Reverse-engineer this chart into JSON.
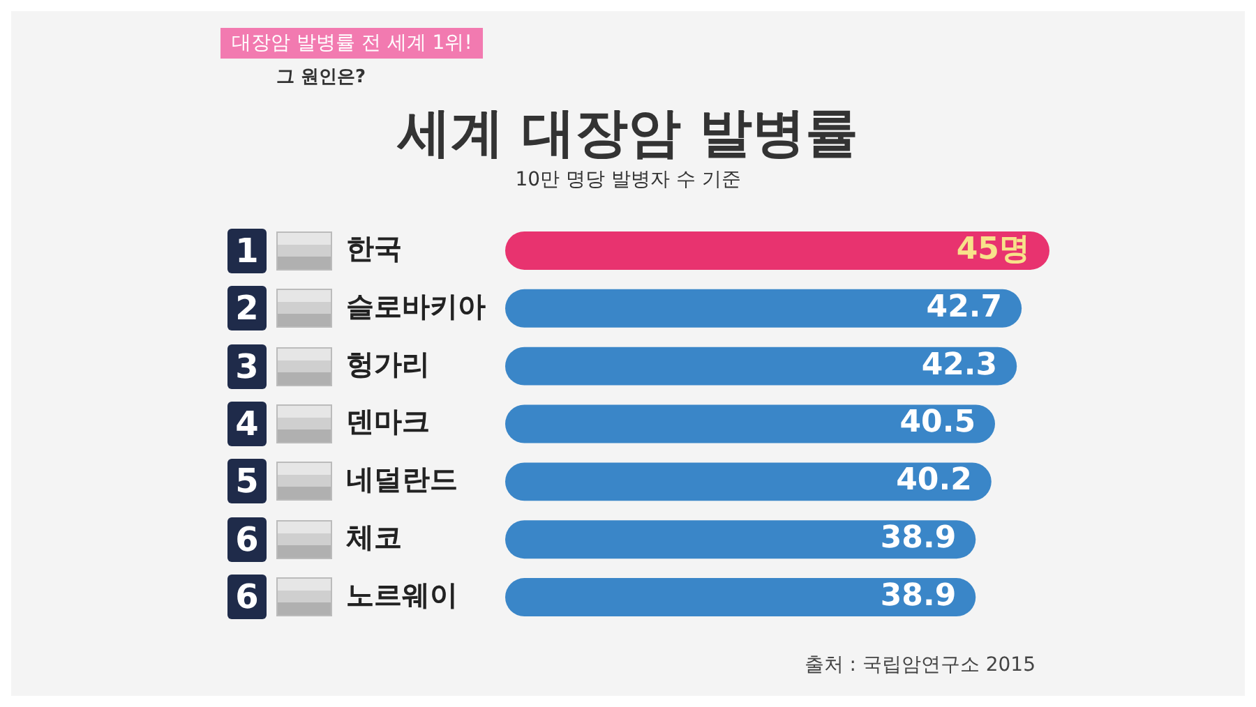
{
  "chart_data": {
    "type": "bar",
    "orientation": "horizontal",
    "title": "세계 대장암 발병률",
    "subtitle": "10만 명당 발병자 수 기준",
    "categories": [
      "한국",
      "슬로바키아",
      "헝가리",
      "덴마크",
      "네덜란드",
      "체코",
      "노르웨이"
    ],
    "values": [
      45,
      42.7,
      42.3,
      40.5,
      40.2,
      38.9,
      38.9
    ],
    "value_labels": [
      "45명",
      "42.7",
      "42.3",
      "40.5",
      "40.2",
      "38.9",
      "38.9"
    ],
    "colors": [
      "#e8336f",
      "#3a86c8",
      "#3a86c8",
      "#3a86c8",
      "#3a86c8",
      "#3a86c8",
      "#3a86c8"
    ],
    "annotations": [
      "대장암 발병률 전 세계 1위!",
      "그 원인은?",
      "출처 : 국립암연구소 2015",
      "1",
      "2",
      "3",
      "4",
      "5",
      "6",
      "6"
    ],
    "tick_labels": "y",
    "grid": false,
    "legend": false
  }
}
